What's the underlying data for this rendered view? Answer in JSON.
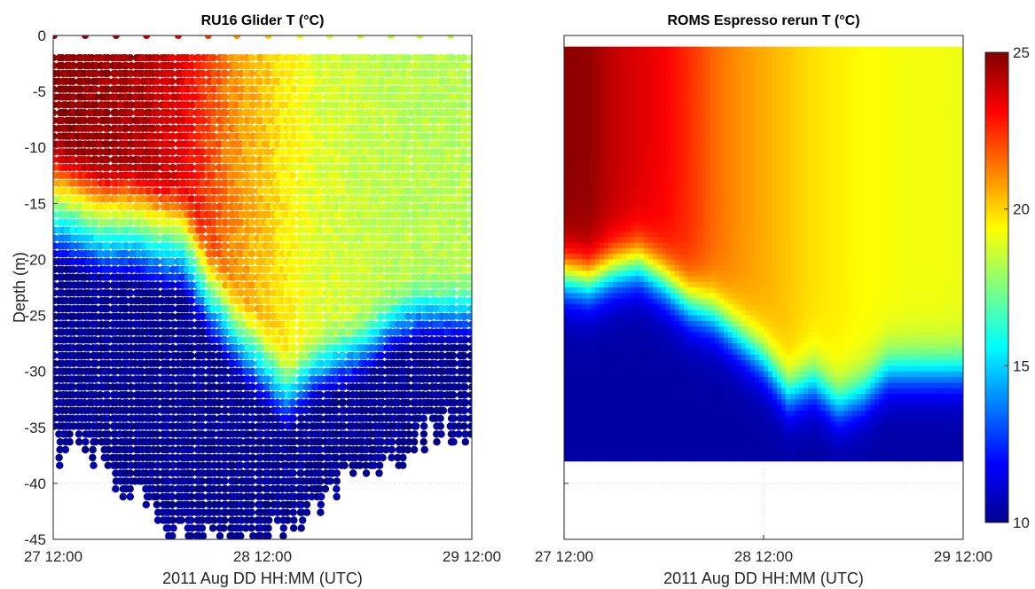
{
  "chart_data": [
    {
      "type": "scatter",
      "title": "RU16 Glider T (°C)",
      "xlabel": "2011 Aug DD HH:MM (UTC)",
      "ylabel": "Depth (m)",
      "x_ticks": [
        "27 12:00",
        "28 12:00",
        "29 12:00"
      ],
      "y_ticks": [
        "0",
        "-5",
        "-10",
        "-15",
        "-20",
        "-25",
        "-30",
        "-35",
        "-40",
        "-45"
      ],
      "xlim": [
        "2011-08-27T12:00",
        "2011-08-29T12:00"
      ],
      "ylim": [
        -45,
        0
      ],
      "grid": true,
      "color_variable": "Temperature (°C)",
      "colormap": "jet",
      "clim": [
        10,
        25
      ],
      "profiles": [
        {
          "time": "2011-08-27T12:00",
          "bottom_depth": -37,
          "thermocline_depth": -11,
          "surface_temp": 24.8
        },
        {
          "time": "2011-08-27T15:00",
          "bottom_depth": -36,
          "thermocline_depth": -12,
          "surface_temp": 24.7
        },
        {
          "time": "2011-08-27T18:00",
          "bottom_depth": -39,
          "thermocline_depth": -13,
          "surface_temp": 24.6
        },
        {
          "time": "2011-08-27T21:00",
          "bottom_depth": -40,
          "thermocline_depth": -13,
          "surface_temp": 24.4
        },
        {
          "time": "2011-08-28T00:00",
          "bottom_depth": -44,
          "thermocline_depth": -14,
          "surface_temp": 24.0
        },
        {
          "time": "2011-08-28T03:00",
          "bottom_depth": -45,
          "thermocline_depth": -15,
          "surface_temp": 23.4
        },
        {
          "time": "2011-08-28T06:00",
          "bottom_depth": -44,
          "thermocline_depth": -20,
          "surface_temp": 22.2
        },
        {
          "time": "2011-08-28T09:00",
          "bottom_depth": -44,
          "thermocline_depth": -24,
          "surface_temp": 21.0
        },
        {
          "time": "2011-08-28T12:00",
          "bottom_depth": -45,
          "thermocline_depth": -27,
          "surface_temp": 20.3
        },
        {
          "time": "2011-08-28T15:00",
          "bottom_depth": -44,
          "thermocline_depth": -30,
          "surface_temp": 19.6
        },
        {
          "time": "2011-08-28T18:00",
          "bottom_depth": -42,
          "thermocline_depth": -28,
          "surface_temp": 18.9
        },
        {
          "time": "2011-08-28T21:00",
          "bottom_depth": -40,
          "thermocline_depth": -27,
          "surface_temp": 18.7
        },
        {
          "time": "2011-08-29T00:00",
          "bottom_depth": -38,
          "thermocline_depth": -26,
          "surface_temp": 18.5
        },
        {
          "time": "2011-08-29T03:00",
          "bottom_depth": -38,
          "thermocline_depth": -24,
          "surface_temp": 18.4
        },
        {
          "time": "2011-08-29T06:00",
          "bottom_depth": -36,
          "thermocline_depth": -23,
          "surface_temp": 18.3
        },
        {
          "time": "2011-08-29T09:00",
          "bottom_depth": -35,
          "thermocline_depth": -23,
          "surface_temp": 18.3
        },
        {
          "time": "2011-08-29T12:00",
          "bottom_depth": -35,
          "thermocline_depth": -23,
          "surface_temp": 18.3
        }
      ]
    },
    {
      "type": "heatmap",
      "title": "ROMS Espresso rerun T (°C)",
      "xlabel": "2011 Aug DD HH:MM (UTC)",
      "ylabel": "",
      "x_ticks": [
        "27 12:00",
        "28 12:00",
        "29 12:00"
      ],
      "xlim": [
        "2011-08-27T12:00",
        "2011-08-29T12:00"
      ],
      "ylim": [
        -45,
        0
      ],
      "data_extent_depth": [
        -38,
        -1
      ],
      "grid": true,
      "colormap": "jet",
      "clim": [
        10,
        25
      ],
      "colorbar": {
        "ticks": [
          "10",
          "15",
          "20",
          "25"
        ],
        "placement": "right"
      },
      "bottom_temp": 10.5,
      "columns": [
        {
          "time": "2011-08-27T12:00",
          "surface_temp": 24.8,
          "thermocline_depth": -21.5
        },
        {
          "time": "2011-08-27T15:00",
          "surface_temp": 24.7,
          "thermocline_depth": -22
        },
        {
          "time": "2011-08-27T18:00",
          "surface_temp": 24.0,
          "thermocline_depth": -21
        },
        {
          "time": "2011-08-27T21:00",
          "surface_temp": 23.6,
          "thermocline_depth": -20.5
        },
        {
          "time": "2011-08-28T00:00",
          "surface_temp": 23.2,
          "thermocline_depth": -22
        },
        {
          "time": "2011-08-28T03:00",
          "surface_temp": 22.5,
          "thermocline_depth": -24
        },
        {
          "time": "2011-08-28T06:00",
          "surface_temp": 21.6,
          "thermocline_depth": -25
        },
        {
          "time": "2011-08-28T09:00",
          "surface_temp": 21.0,
          "thermocline_depth": -27
        },
        {
          "time": "2011-08-28T12:00",
          "surface_temp": 20.6,
          "thermocline_depth": -29
        },
        {
          "time": "2011-08-28T15:00",
          "surface_temp": 20.2,
          "thermocline_depth": -32
        },
        {
          "time": "2011-08-28T18:00",
          "surface_temp": 19.8,
          "thermocline_depth": -31
        },
        {
          "time": "2011-08-28T21:00",
          "surface_temp": 19.6,
          "thermocline_depth": -33
        },
        {
          "time": "2011-08-29T00:00",
          "surface_temp": 19.4,
          "thermocline_depth": -32
        },
        {
          "time": "2011-08-29T03:00",
          "surface_temp": 19.3,
          "thermocline_depth": -30
        },
        {
          "time": "2011-08-29T06:00",
          "surface_temp": 19.2,
          "thermocline_depth": -30
        },
        {
          "time": "2011-08-29T09:00",
          "surface_temp": 19.2,
          "thermocline_depth": -30
        },
        {
          "time": "2011-08-29T12:00",
          "surface_temp": 19.1,
          "thermocline_depth": -30
        }
      ]
    }
  ]
}
